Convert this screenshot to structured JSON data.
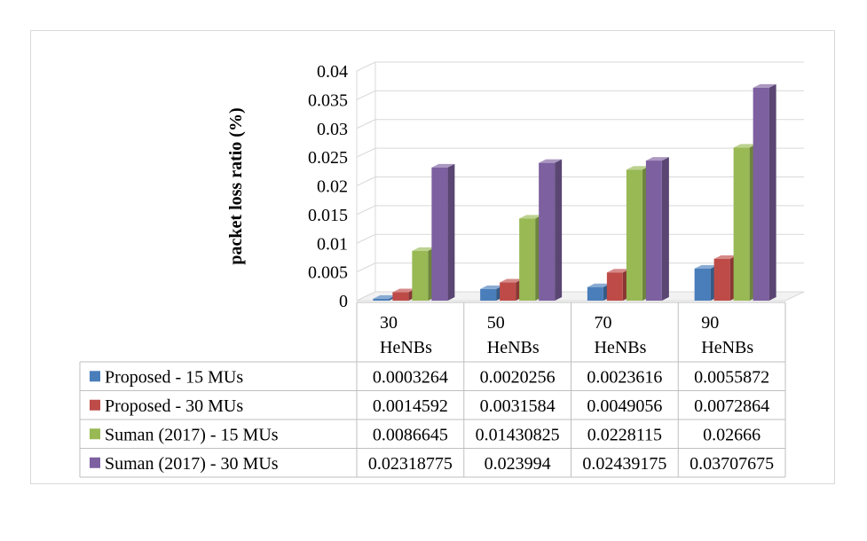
{
  "caption": "",
  "chart_data": {
    "type": "bar",
    "title": "",
    "xlabel": "",
    "ylabel": "packet loss ratio (%)",
    "ylim": [
      0,
      0.04
    ],
    "y_ticks": [
      "0",
      "0.005",
      "0.01",
      "0.015",
      "0.02",
      "0.025",
      "0.03",
      "0.035",
      "0.04"
    ],
    "grid": true,
    "three_d": true,
    "legend_placement": "data-table-left",
    "categories": [
      [
        "30",
        "HeNBs"
      ],
      [
        "50",
        "HeNBs"
      ],
      [
        "70",
        "HeNBs"
      ],
      [
        "90",
        "HeNBs"
      ]
    ],
    "series": [
      {
        "name": "Proposed  - 15 MUs",
        "color": "#4a7ebb",
        "values": [
          0.0003264,
          0.0020256,
          0.0023616,
          0.0055872
        ],
        "labels": [
          "0.0003264",
          "0.0020256",
          "0.0023616",
          "0.0055872"
        ]
      },
      {
        "name": "Proposed  - 30 MUs",
        "color": "#be4b48",
        "values": [
          0.0014592,
          0.0031584,
          0.0049056,
          0.0072864
        ],
        "labels": [
          "0.0014592",
          "0.0031584",
          "0.0049056",
          "0.0072864"
        ]
      },
      {
        "name": "Suman  (2017) -  15 MUs",
        "color": "#98b954",
        "values": [
          0.0086645,
          0.01430825,
          0.0228115,
          0.02666
        ],
        "labels": [
          "0.0086645",
          "0.01430825",
          "0.0228115",
          "0.02666"
        ]
      },
      {
        "name": "Suman  (2017) -  30 MUs",
        "color": "#7d60a0",
        "values": [
          0.02318775,
          0.023994,
          0.02439175,
          0.03707675
        ],
        "labels": [
          "0.02318775",
          "0.023994",
          "0.02439175",
          "0.03707675"
        ]
      }
    ]
  }
}
